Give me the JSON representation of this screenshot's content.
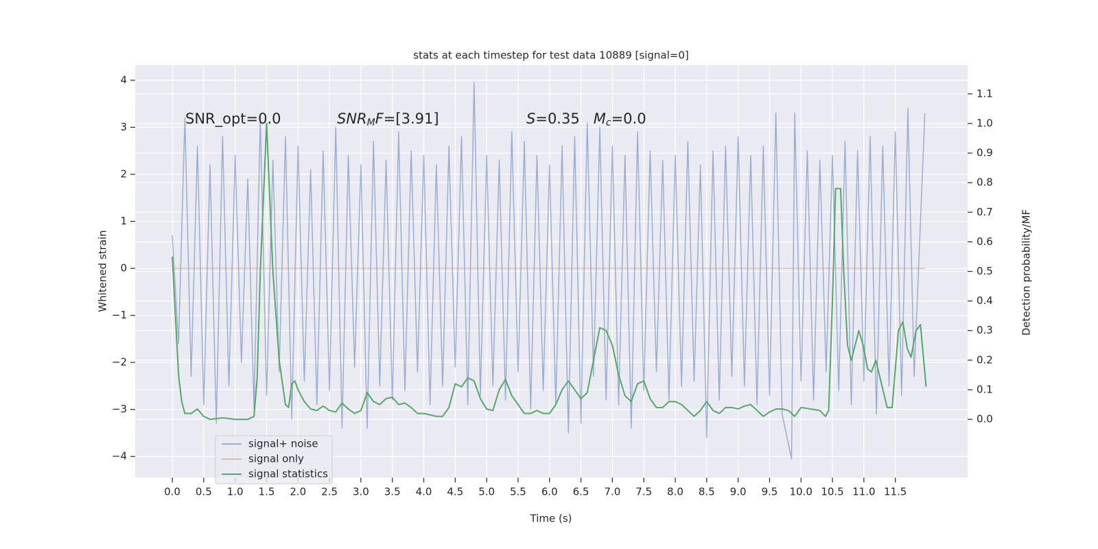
{
  "chart_data": {
    "type": "line",
    "title": "stats at each timestep for test data 10889 [signal=0]",
    "xlabel": "Time (s)",
    "ylabel": "Whitened strain",
    "y2label": "Detection probability/MF",
    "xlim": [
      -0.59,
      12.65
    ],
    "ylim": [
      -4.45,
      4.32
    ],
    "y2lim": [
      -0.197,
      1.197
    ],
    "grid": true,
    "legend": "lower left",
    "xticks": [
      {
        "value": 0,
        "label": "0.0"
      },
      0.5,
      {
        "value": 1,
        "label": "1.0"
      },
      1.5,
      {
        "value": 2,
        "label": "2.0"
      },
      2.5,
      {
        "value": 3,
        "label": "3.0"
      },
      3.5,
      {
        "value": 4,
        "label": "4.0"
      },
      4.5,
      {
        "value": 5,
        "label": "5.0"
      },
      5.5,
      {
        "value": 6,
        "label": "6.0"
      },
      6.5,
      {
        "value": 7,
        "label": "7.0"
      },
      7.5,
      {
        "value": 8,
        "label": "8.0"
      },
      8.5,
      {
        "value": 9,
        "label": "9.0"
      },
      9.5,
      {
        "value": 10,
        "label": "10.0"
      },
      10.5,
      {
        "value": 11,
        "label": "11.0"
      },
      11.5
    ],
    "yticks": [
      {
        "value": -4,
        "label": "−4"
      },
      {
        "value": -3,
        "label": "−3"
      },
      {
        "value": -2,
        "label": "−2"
      },
      {
        "value": -1,
        "label": "−1"
      },
      0,
      1,
      2,
      3,
      4
    ],
    "y2ticks": [
      {
        "value": 0,
        "label": "0.0"
      },
      0.1,
      0.2,
      0.3,
      0.4,
      0.5,
      0.6,
      0.7,
      0.8,
      0.9,
      {
        "value": 1,
        "label": "1.0"
      },
      1.1
    ],
    "annotations": [
      [
        {
          "text": "SNR_opt=0.0"
        }
      ],
      [
        {
          "text": "SNR",
          "italic": true
        },
        {
          "text": "M",
          "italic": true,
          "sub": true
        },
        {
          "text": "F",
          "italic": true
        },
        {
          "text": "=[3.91]"
        }
      ],
      [
        {
          "text": "S",
          "italic": true
        },
        {
          "text": "=0.35   "
        },
        {
          "text": "M",
          "italic": true
        },
        {
          "text": "c",
          "italic": true,
          "sub": true
        },
        {
          "text": "=0.0"
        }
      ]
    ],
    "series": [
      {
        "name": "signal+ noise",
        "color": "#4c72b0",
        "alpha": 0.5,
        "x": [
          0,
          0.1,
          0.2,
          0.3,
          0.4,
          0.5,
          0.6,
          0.7,
          0.8,
          0.9,
          1,
          1.1,
          1.2,
          1.3,
          1.4,
          1.5,
          1.6,
          1.7,
          1.8,
          1.9,
          2,
          2.1,
          2.2,
          2.3,
          2.4,
          2.5,
          2.6,
          2.7,
          2.8,
          2.9,
          3,
          3.1,
          3.2,
          3.3,
          3.4,
          3.5,
          3.6,
          3.7,
          3.8,
          3.9,
          4,
          4.1,
          4.2,
          4.3,
          4.4,
          4.5,
          4.6,
          4.7,
          4.8,
          4.9,
          5,
          5.1,
          5.2,
          5.3,
          5.4,
          5.5,
          5.6,
          5.7,
          5.8,
          5.9,
          6,
          6.1,
          6.2,
          6.3,
          6.4,
          6.5,
          6.6,
          6.7,
          6.8,
          6.9,
          7,
          7.1,
          7.2,
          7.3,
          7.4,
          7.5,
          7.6,
          7.7,
          7.8,
          7.9,
          8,
          8.1,
          8.2,
          8.3,
          8.4,
          8.5,
          8.6,
          8.7,
          8.8,
          8.9,
          9,
          9.1,
          9.2,
          9.3,
          9.4,
          9.5,
          9.6,
          9.7,
          9.85,
          9.9,
          10,
          10.1,
          10.2,
          10.3,
          10.4,
          10.5,
          10.6,
          10.7,
          10.8,
          10.9,
          11,
          11.1,
          11.2,
          11.3,
          11.4,
          11.5,
          11.6,
          11.7,
          11.8,
          11.97
        ],
        "values": [
          0.7,
          -1.6,
          3.2,
          -2.3,
          2.6,
          -2.9,
          2.2,
          -3.3,
          2.8,
          -2.5,
          2.4,
          -2.0,
          1.9,
          -3.0,
          3.2,
          -2.7,
          2.3,
          -2.2,
          2.8,
          -3.2,
          2.6,
          -2.4,
          2.1,
          -2.9,
          2.5,
          -2.6,
          3.0,
          -3.4,
          2.4,
          -2.1,
          2.2,
          -3.4,
          2.7,
          -2.5,
          2.3,
          -2.8,
          2.9,
          -2.6,
          2.5,
          -2.2,
          2.4,
          -2.9,
          2.2,
          -2.5,
          2.6,
          -2.1,
          2.8,
          -2.9,
          3.95,
          -2.7,
          2.4,
          -2.5,
          2.3,
          -2.8,
          2.9,
          -2.2,
          2.7,
          -3.0,
          2.4,
          -2.6,
          2.2,
          -2.9,
          2.6,
          -3.5,
          2.8,
          -3.3,
          3.1,
          -2.3,
          3.0,
          -2.8,
          2.6,
          -2.9,
          2.4,
          -3.4,
          2.9,
          -2.6,
          2.5,
          -2.2,
          2.3,
          -2.8,
          2.4,
          -2.5,
          2.7,
          -2.4,
          2.2,
          -3.6,
          2.5,
          -2.8,
          2.6,
          -2.3,
          2.8,
          -2.5,
          2.4,
          -2.9,
          2.6,
          -2.7,
          3.3,
          -3.1,
          -4.05,
          3.3,
          -2.4,
          2.5,
          -2.8,
          2.3,
          -2.2,
          2.4,
          -2.6,
          2.7,
          -2.9,
          2.5,
          -2.4,
          2.8,
          -3.1,
          2.6,
          -2.5,
          2.9,
          -2.7,
          3.4,
          -2.3,
          3.3
        ]
      },
      {
        "name": "signal only",
        "color": "#dd8452",
        "alpha": 0.5,
        "x": [
          0,
          11.97
        ],
        "values": [
          0,
          0
        ]
      },
      {
        "name": "signal statistics",
        "color": "#55a868",
        "alpha": 1,
        "axis": "y2",
        "x": [
          0,
          0.1,
          0.15,
          0.2,
          0.3,
          0.4,
          0.5,
          0.6,
          0.8,
          1.0,
          1.2,
          1.3,
          1.35,
          1.4,
          1.5,
          1.6,
          1.7,
          1.8,
          1.85,
          1.9,
          1.95,
          2.0,
          2.1,
          2.2,
          2.3,
          2.4,
          2.5,
          2.6,
          2.7,
          2.8,
          2.9,
          3.0,
          3.1,
          3.2,
          3.3,
          3.4,
          3.5,
          3.6,
          3.7,
          3.8,
          3.9,
          4.0,
          4.2,
          4.3,
          4.4,
          4.5,
          4.6,
          4.7,
          4.8,
          4.9,
          5.0,
          5.1,
          5.2,
          5.3,
          5.4,
          5.5,
          5.6,
          5.7,
          5.8,
          5.9,
          6.0,
          6.1,
          6.2,
          6.3,
          6.4,
          6.5,
          6.6,
          6.7,
          6.8,
          6.9,
          7.0,
          7.1,
          7.2,
          7.3,
          7.4,
          7.5,
          7.6,
          7.7,
          7.8,
          7.9,
          8.0,
          8.1,
          8.2,
          8.3,
          8.4,
          8.5,
          8.6,
          8.7,
          8.8,
          8.9,
          9.0,
          9.1,
          9.2,
          9.3,
          9.4,
          9.5,
          9.6,
          9.7,
          9.8,
          9.9,
          10.0,
          10.3,
          10.39,
          10.44,
          10.5,
          10.55,
          10.63,
          10.68,
          10.74,
          10.8,
          10.92,
          10.99,
          11.06,
          11.12,
          11.19,
          11.28,
          11.37,
          11.45,
          11.55,
          11.62,
          11.69,
          11.75,
          11.83,
          11.9,
          11.99
        ],
        "values": [
          0.55,
          0.15,
          0.06,
          0.02,
          0.02,
          0.035,
          0.01,
          0.0,
          0.005,
          0.0,
          0.0,
          0.01,
          0.14,
          0.5,
          1.0,
          0.5,
          0.2,
          0.05,
          0.04,
          0.12,
          0.13,
          0.1,
          0.06,
          0.035,
          0.03,
          0.045,
          0.03,
          0.025,
          0.055,
          0.035,
          0.02,
          0.03,
          0.09,
          0.06,
          0.05,
          0.07,
          0.075,
          0.05,
          0.055,
          0.04,
          0.02,
          0.02,
          0.01,
          0.01,
          0.04,
          0.12,
          0.11,
          0.14,
          0.13,
          0.07,
          0.035,
          0.03,
          0.1,
          0.135,
          0.08,
          0.05,
          0.02,
          0.02,
          0.03,
          0.02,
          0.02,
          0.05,
          0.1,
          0.13,
          0.1,
          0.07,
          0.09,
          0.2,
          0.31,
          0.3,
          0.25,
          0.15,
          0.08,
          0.06,
          0.12,
          0.13,
          0.07,
          0.04,
          0.04,
          0.06,
          0.06,
          0.05,
          0.03,
          0.01,
          0.03,
          0.06,
          0.03,
          0.02,
          0.04,
          0.04,
          0.035,
          0.045,
          0.05,
          0.03,
          0.01,
          0.025,
          0.035,
          0.035,
          0.03,
          0.01,
          0.04,
          0.03,
          0.01,
          0.03,
          0.4,
          0.78,
          0.78,
          0.5,
          0.25,
          0.2,
          0.3,
          0.25,
          0.17,
          0.16,
          0.2,
          0.12,
          0.04,
          0.04,
          0.3,
          0.33,
          0.24,
          0.21,
          0.3,
          0.32,
          0.11
        ]
      }
    ]
  }
}
